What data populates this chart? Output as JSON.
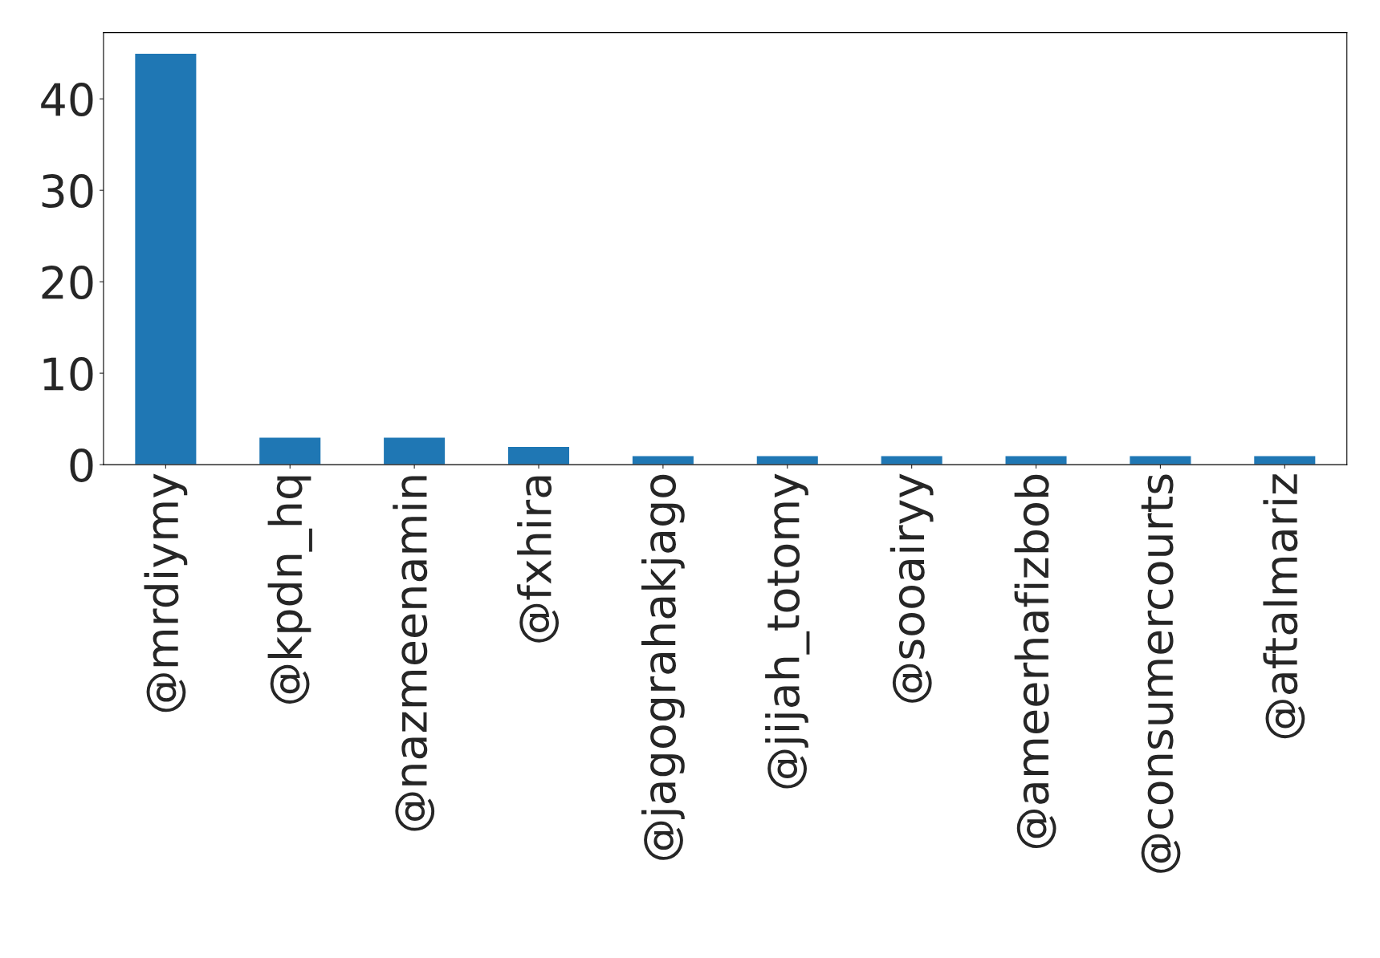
{
  "chart_data": {
    "type": "bar",
    "categories": [
      "@mrdiymy",
      "@kpdn_hq",
      "@nazmeenamin",
      "@fxhira",
      "@jagograhakjago",
      "@jijah_totomy",
      "@sooairyy",
      "@ameerhafizbob",
      "@consumercourts",
      "@aftalmariz"
    ],
    "values": [
      45,
      3,
      3,
      2,
      1,
      1,
      1,
      1,
      1,
      1
    ],
    "color": "#1f77b4",
    "ylim": [
      0,
      47.25
    ],
    "yticks": [
      0,
      10,
      20,
      30,
      40
    ],
    "grid": false,
    "legend": false
  }
}
